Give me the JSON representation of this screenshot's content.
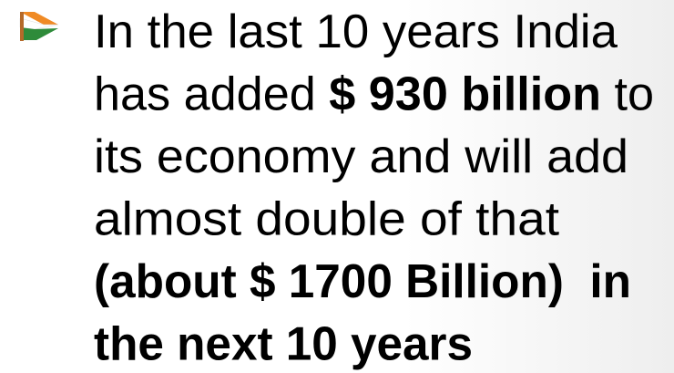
{
  "bullet": {
    "lines": [
      [
        {
          "text": "In the last 10 years India",
          "bold": false
        }
      ],
      [
        {
          "text": "has added ",
          "bold": false
        },
        {
          "text": "$ 930 billion",
          "bold": true
        },
        {
          "text": " to",
          "bold": false
        }
      ],
      [
        {
          "text": "its economy and will add",
          "bold": false
        }
      ],
      [
        {
          "text": "almost double of that",
          "bold": false
        }
      ],
      [
        {
          "text": "(about $ 1700 Billion)  in",
          "bold": true
        }
      ],
      [
        {
          "text": "the next 10 years",
          "bold": true
        }
      ]
    ]
  }
}
